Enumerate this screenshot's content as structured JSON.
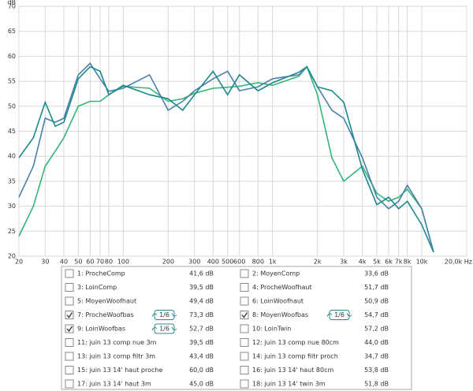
{
  "chart_data": {
    "type": "line",
    "ylabel": "dB",
    "log_x": true,
    "grid": true,
    "x": [
      20,
      25,
      30,
      35,
      40,
      50,
      60,
      70,
      80,
      100,
      150,
      200,
      250,
      300,
      400,
      500,
      600,
      800,
      1000,
      1500,
      1700,
      2000,
      2500,
      3000,
      4000,
      5000,
      6000,
      7000,
      8000,
      10000,
      12000
    ],
    "series": [
      {
        "color": "#34b57c",
        "values": [
          24,
          30,
          38,
          41,
          43.7,
          50,
          51,
          51,
          52.3,
          54,
          53.6,
          51,
          51.5,
          52.6,
          53.6,
          53.8,
          54,
          54.7,
          54.2,
          56,
          57.9,
          52.3,
          39.7,
          35,
          38,
          32.6,
          31,
          31.8,
          33.4,
          29.5,
          20.8
        ]
      },
      {
        "color": "#4a80aa",
        "values": [
          31.8,
          38,
          47.6,
          46.8,
          47.6,
          56.3,
          58.6,
          55.5,
          53,
          53.6,
          56.3,
          49.2,
          51,
          53.1,
          55.5,
          57,
          53.1,
          53.9,
          55.5,
          56.3,
          57.9,
          53.9,
          49.2,
          47.6,
          39.7,
          31.8,
          29.5,
          31,
          34.2,
          29.5,
          20.8
        ]
      },
      {
        "color": "#1d8a8a",
        "values": [
          39.7,
          43.7,
          50.8,
          46,
          46.8,
          55.5,
          57.9,
          57,
          52.3,
          54.2,
          52.3,
          51.5,
          49.2,
          52.3,
          57,
          52.3,
          56.3,
          53.1,
          54.7,
          56.8,
          57.9,
          53.9,
          53.1,
          50.8,
          37.4,
          30.3,
          31.8,
          29.5,
          31,
          26.3,
          20.8
        ]
      }
    ],
    "xlim": [
      20,
      20000
    ],
    "ylim": [
      20,
      70
    ],
    "xticks": [
      20,
      30,
      40,
      50,
      60,
      70,
      80,
      100,
      200,
      300,
      400,
      500,
      600,
      800,
      {
        "value": 1000,
        "label": "1k"
      },
      {
        "value": 2000,
        "label": "2k"
      },
      {
        "value": 3000,
        "label": "3k"
      },
      {
        "value": 4000,
        "label": "4k"
      },
      {
        "value": 5000,
        "label": "5k"
      },
      {
        "value": 6000,
        "label": "6k"
      },
      {
        "value": 7000,
        "label": "7k"
      },
      {
        "value": 8000,
        "label": "8k"
      },
      {
        "value": 10000,
        "label": "10k"
      },
      {
        "value": 20000,
        "label": "20,0k Hz"
      }
    ],
    "yticks": [
      20,
      25,
      30,
      35,
      40,
      45,
      50,
      55,
      60,
      65,
      70
    ]
  },
  "legend": {
    "items": [
      {
        "label": "1: ProcheComp",
        "level": "41,6 dB",
        "color": "#a040a8",
        "checked": false
      },
      {
        "label": "2: MoyenComp",
        "level": "33,6 dB",
        "color": "#8a4cb0",
        "checked": false
      },
      {
        "label": "3: LoinComp",
        "level": "39,5 dB",
        "color": "#2e9e3e",
        "checked": false
      },
      {
        "label": "4: ProcheWoofhaut",
        "level": "51,7 dB",
        "color": "#b040b0",
        "checked": false
      },
      {
        "label": "5: MoyenWoofhaut",
        "level": "49,4 dB",
        "color": "#a02020",
        "checked": false
      },
      {
        "label": "6: LoinWoofhaut",
        "level": "50,9 dB",
        "color": "#3a8a20",
        "checked": false
      },
      {
        "label": "7: ProcheWoofbas",
        "level": "73,3 dB",
        "color": "#2aa070",
        "checked": true,
        "smoothing": "1/6"
      },
      {
        "label": "8: MoyenWoofbas",
        "level": "54,7 dB",
        "color": "#3a6ea8",
        "checked": true,
        "smoothing": "1/6"
      },
      {
        "label": "9: LoinWoofbas",
        "level": "52,7 dB",
        "color": "#1a8a8a",
        "checked": true,
        "smoothing": "1/6"
      },
      {
        "label": "10: LoinTwin",
        "level": "57,2 dB",
        "color": "#d02020",
        "checked": false
      },
      {
        "label": "11: juin 13 comp nue 3m",
        "level": "39,5 dB",
        "color": "#7030a0",
        "checked": false
      },
      {
        "label": "12: juin 13 comp nue 80cm",
        "level": "44,0 dB",
        "color": "#4070b0",
        "checked": false
      },
      {
        "label": "13: juin 13 comp filtr 3m",
        "level": "43,4 dB",
        "color": "#9040a0",
        "checked": false
      },
      {
        "label": "14: juin 13 comp filtr proch",
        "level": "34,7 dB",
        "color": "#8040a0",
        "checked": false
      },
      {
        "label": "15: juin 13 14' haut proche",
        "level": "60,0 dB",
        "color": "#5050a0",
        "checked": false
      },
      {
        "label": "16: juin 13 14' haut 80cm",
        "level": "53,8 dB",
        "color": "#308080",
        "checked": false
      },
      {
        "label": "17: juin 13 14' haut 3m",
        "level": "45,0 dB",
        "color": "#30a040",
        "checked": false
      },
      {
        "label": "18: juin 13 14' twin 3m",
        "level": "51,8 dB",
        "color": "#305090",
        "checked": false
      }
    ]
  }
}
